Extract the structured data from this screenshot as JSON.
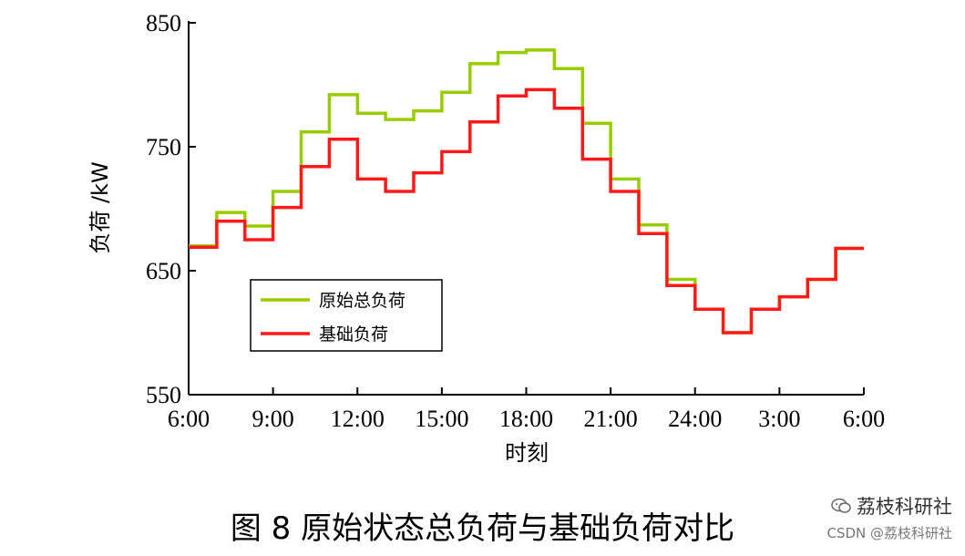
{
  "chart_data": {
    "type": "line",
    "step": true,
    "xlabel": "时刻",
    "ylabel": "负荷 /kW",
    "ylim": [
      550,
      850
    ],
    "yticks": [
      550,
      650,
      750,
      850
    ],
    "xticks": [
      "6:00",
      "9:00",
      "12:00",
      "15:00",
      "18:00",
      "21:00",
      "24:00",
      "3:00",
      "6:00"
    ],
    "x_hours": [
      6,
      7,
      8,
      9,
      10,
      11,
      12,
      13,
      14,
      15,
      16,
      17,
      18,
      19,
      20,
      21,
      22,
      23,
      24,
      25,
      26,
      27,
      28,
      29,
      30
    ],
    "legend_position": "lower-left",
    "series": [
      {
        "name": "原始总负荷",
        "color": "#99cc00",
        "values": [
          670,
          697,
          686,
          714,
          762,
          792,
          777,
          772,
          779,
          794,
          817,
          826,
          828,
          813,
          769,
          724,
          687,
          643,
          619,
          600,
          619,
          629,
          643,
          668
        ]
      },
      {
        "name": "基础负荷",
        "color": "#ff1a1a",
        "values": [
          669,
          690,
          675,
          701,
          734,
          756,
          724,
          714,
          729,
          746,
          770,
          791,
          796,
          781,
          740,
          714,
          680,
          638,
          619,
          600,
          619,
          629,
          643,
          668
        ]
      }
    ]
  },
  "caption": "图 8  原始状态总负荷与基础负荷对比",
  "watermark": {
    "name": "荔枝科研社",
    "credit": "CSDN @荔枝科研社"
  }
}
